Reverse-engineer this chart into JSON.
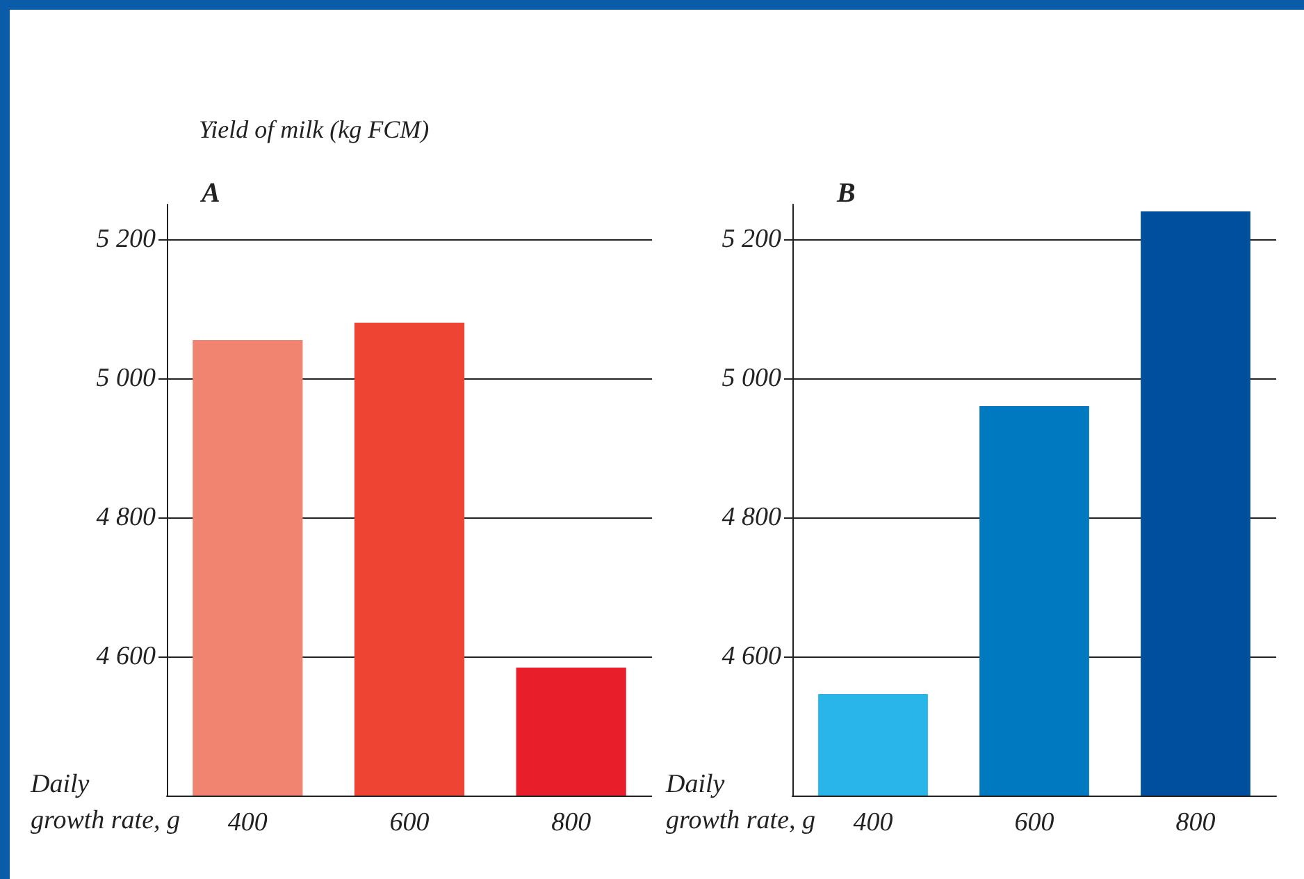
{
  "chart_data": [
    {
      "type": "bar",
      "title": "A",
      "ylabel": "Yield of milk (kg FCM)",
      "xlabel": "Daily\ngrowth rate, g",
      "categories": [
        "400",
        "600",
        "800"
      ],
      "values": [
        5055,
        5080,
        4584
      ],
      "colors": [
        "#f08470",
        "#ee4433",
        "#e81e2a"
      ],
      "ylim": [
        4400,
        5250
      ],
      "yticks": [
        {
          "value": 4600,
          "label": "4 600"
        },
        {
          "value": 4800,
          "label": "4 800"
        },
        {
          "value": 5000,
          "label": "5 000"
        },
        {
          "value": 5200,
          "label": "5 200"
        }
      ],
      "grid": "y"
    },
    {
      "type": "bar",
      "title": "B",
      "xlabel": "Daily\ngrowth rate, g",
      "categories": [
        "400",
        "600",
        "800"
      ],
      "values": [
        4546,
        4960,
        5240
      ],
      "colors": [
        "#29b5e8",
        "#0079c1",
        "#004f9f"
      ],
      "ylim": [
        4400,
        5250
      ],
      "yticks": [
        {
          "value": 4600,
          "label": "4 600"
        },
        {
          "value": 4800,
          "label": "4 800"
        },
        {
          "value": 5000,
          "label": "5 000"
        },
        {
          "value": 5200,
          "label": "5 200"
        }
      ],
      "grid": "y"
    }
  ]
}
